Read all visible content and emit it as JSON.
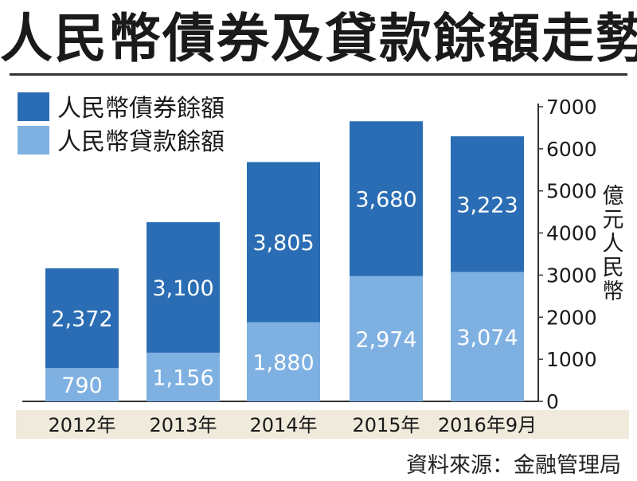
{
  "title": "人民幣債券及貸款餘額走勢",
  "source": "資料來源：金融管理局",
  "colors": {
    "bond": "#2a6db4",
    "loan": "#7fb0e2",
    "axis_band": "#efeadb",
    "text": "#1a1a1a"
  },
  "chart_data": {
    "type": "bar",
    "stacked": true,
    "categories": [
      "2012年",
      "2013年",
      "2014年",
      "2015年",
      "2016年9月"
    ],
    "series": [
      {
        "name": "人民幣貸款餘額",
        "values": [
          790,
          1156,
          1880,
          2974,
          3074
        ],
        "labels": [
          "790",
          "1,156",
          "1,880",
          "2,974",
          "3,074"
        ]
      },
      {
        "name": "人民幣債券餘額",
        "values": [
          2372,
          3100,
          3805,
          3680,
          3223
        ],
        "labels": [
          "2,372",
          "3,100",
          "3,805",
          "3,680",
          "3,223"
        ]
      }
    ],
    "ylabel": "億元人民幣",
    "ylim": [
      0,
      7000
    ],
    "yticks": [
      "0",
      "1000",
      "2000",
      "3000",
      "4000",
      "5000",
      "6000",
      "7000"
    ],
    "legend_position": "top-left",
    "y_axis_side": "right",
    "grid": false
  }
}
